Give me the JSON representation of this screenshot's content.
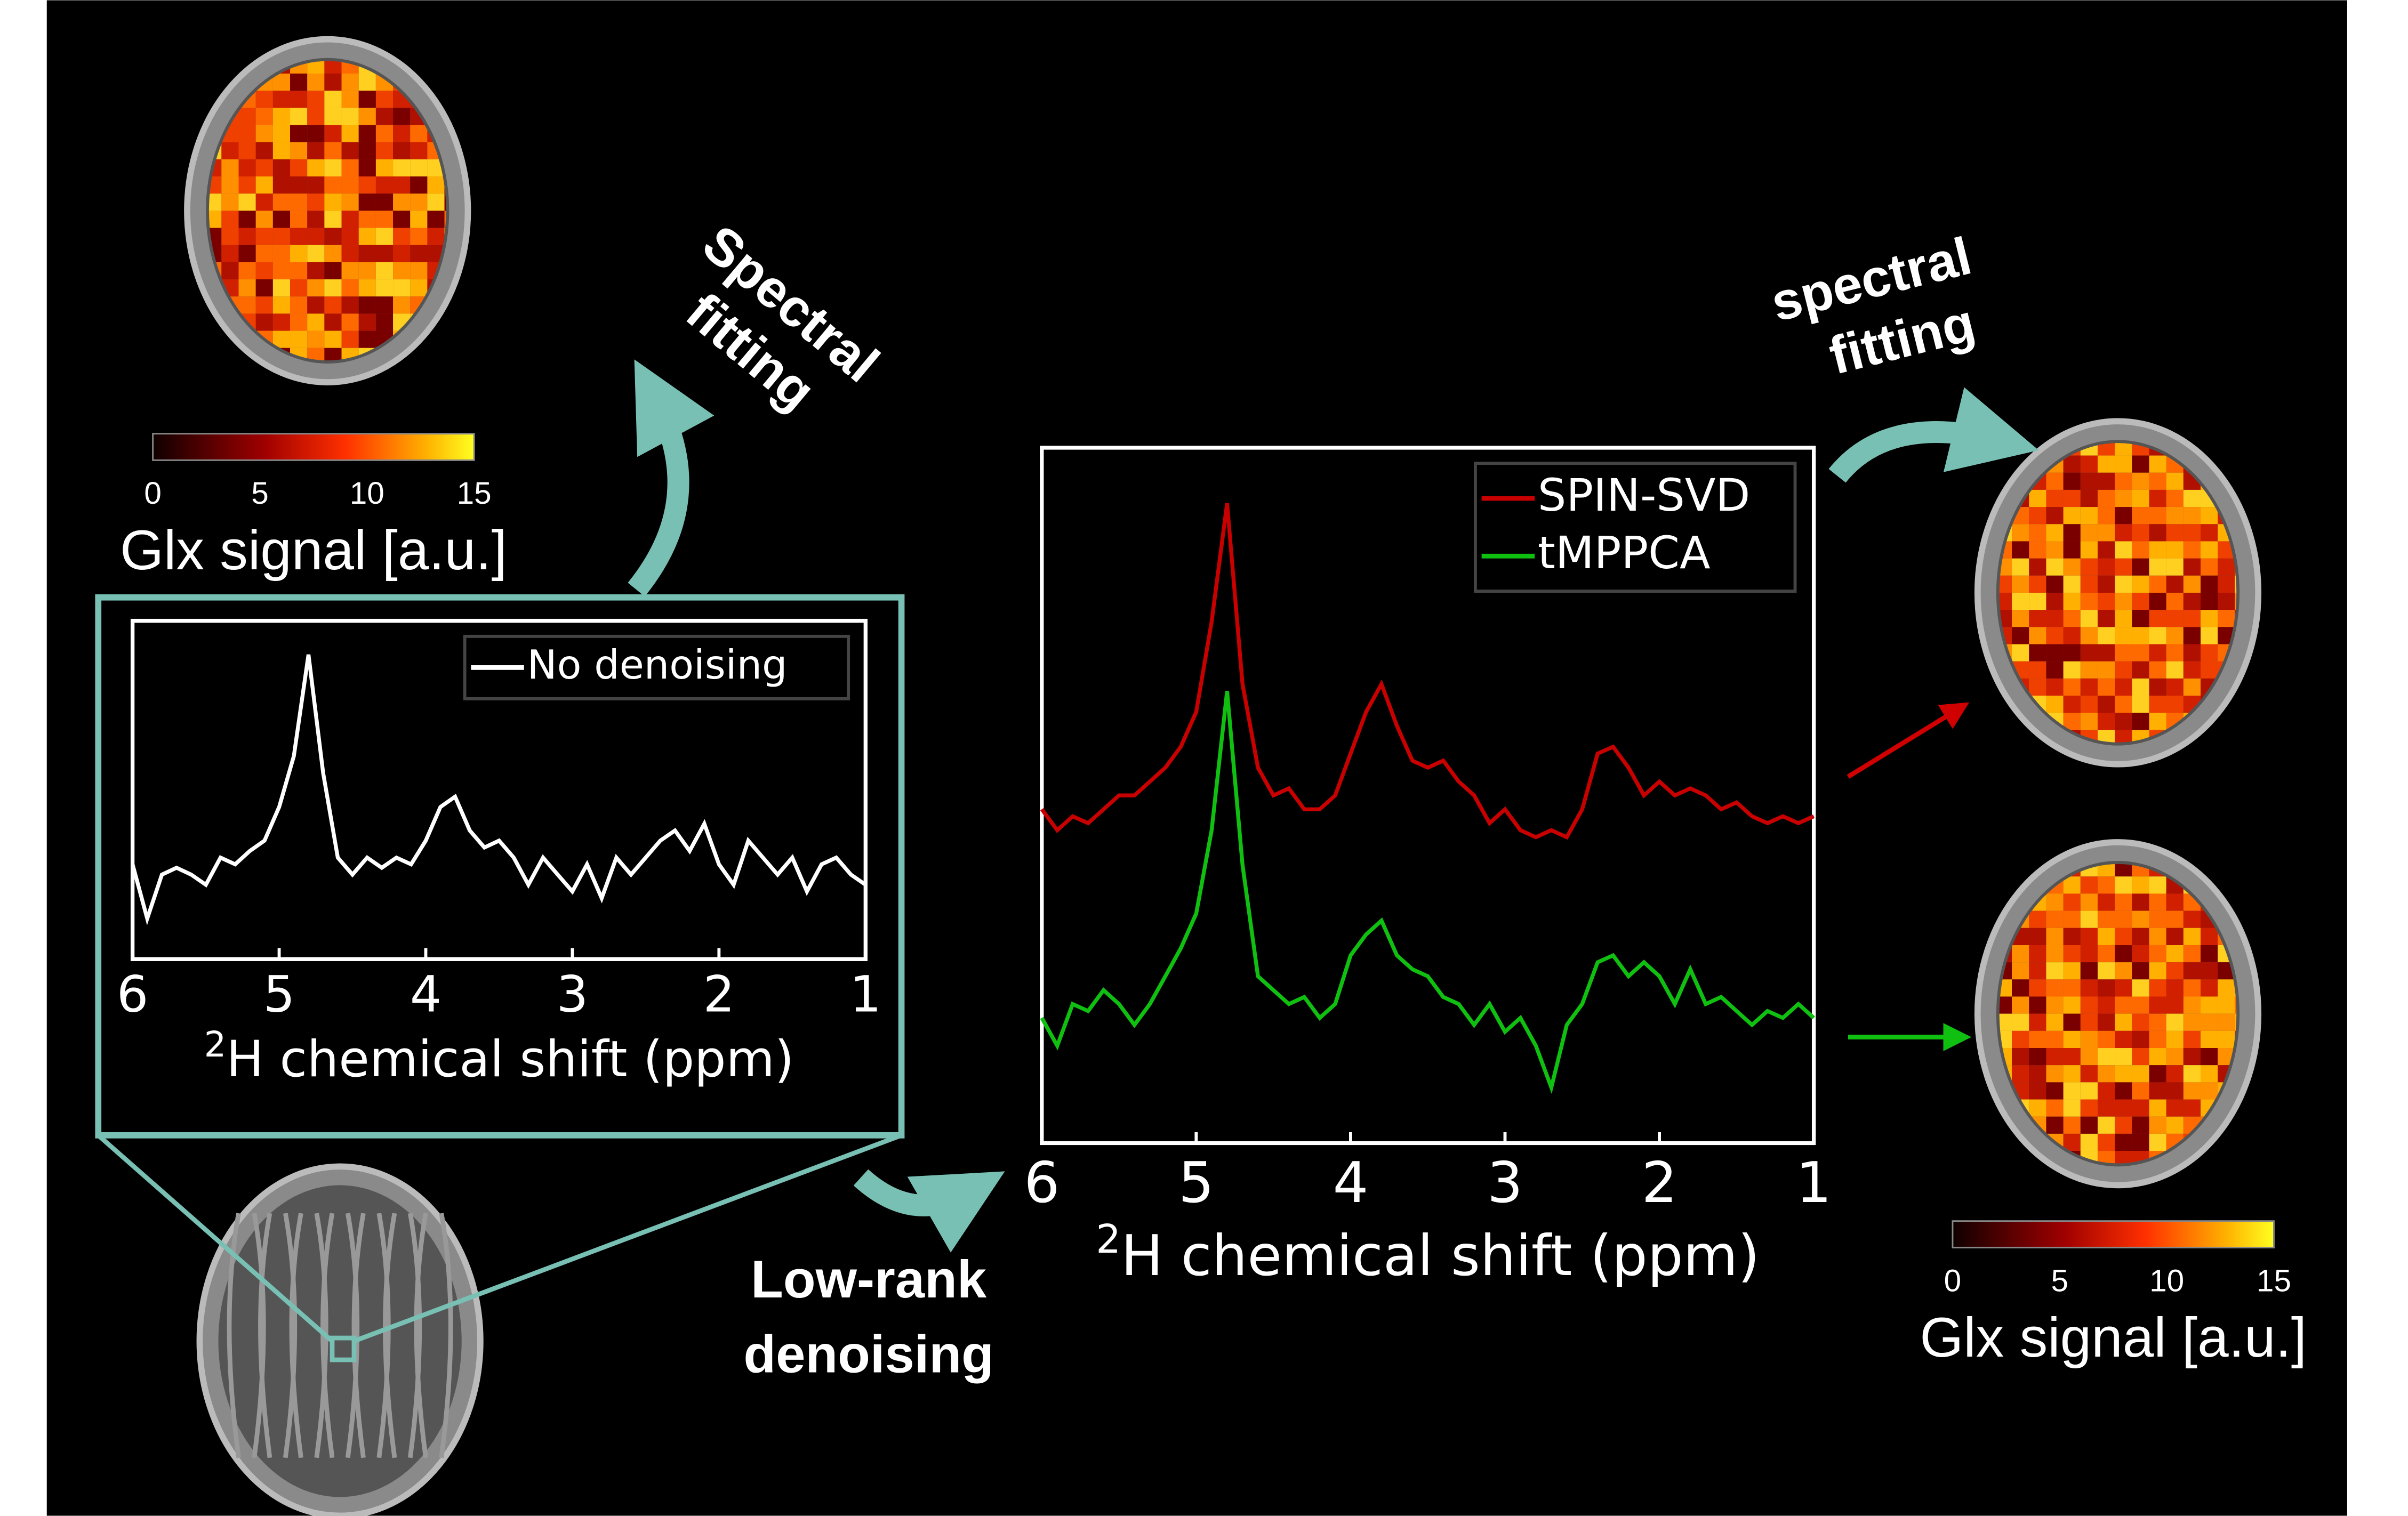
{
  "left_map": {
    "colorbar": {
      "ticks": [
        0,
        5,
        10,
        15
      ],
      "label": "Glx signal [a.u.]"
    },
    "arrow_label": [
      "Spectral",
      "fitting"
    ]
  },
  "noisy_spectrum": {
    "legend": "No denoising",
    "xlim": [
      6,
      1
    ],
    "xticks": [
      6,
      5,
      4,
      3,
      2,
      1
    ],
    "xlabel_sup": "2",
    "xlabel": "H chemical shift (ppm)",
    "x": [
      6,
      5.9,
      5.8,
      5.7,
      5.6,
      5.5,
      5.4,
      5.3,
      5.2,
      5.1,
      5,
      4.9,
      4.8,
      4.7,
      4.6,
      4.5,
      4.4,
      4.3,
      4.2,
      4.1,
      4,
      3.9,
      3.8,
      3.7,
      3.6,
      3.5,
      3.4,
      3.3,
      3.2,
      3.1,
      3,
      2.9,
      2.8,
      2.7,
      2.6,
      2.5,
      2.4,
      2.3,
      2.2,
      2.1,
      2,
      1.9,
      1.8,
      1.7,
      1.6,
      1.5,
      1.4,
      1.3,
      1.2,
      1.1,
      1
    ],
    "color": "#ffffff",
    "values": [
      0.28,
      0.12,
      0.25,
      0.27,
      0.25,
      0.22,
      0.3,
      0.28,
      0.32,
      0.35,
      0.45,
      0.6,
      0.9,
      0.55,
      0.3,
      0.25,
      0.3,
      0.27,
      0.3,
      0.28,
      0.35,
      0.45,
      0.48,
      0.38,
      0.33,
      0.35,
      0.3,
      0.22,
      0.3,
      0.25,
      0.2,
      0.28,
      0.18,
      0.3,
      0.25,
      0.3,
      0.35,
      0.38,
      0.32,
      0.4,
      0.28,
      0.22,
      0.35,
      0.3,
      0.25,
      0.3,
      0.2,
      0.28,
      0.3,
      0.25,
      0.22
    ]
  },
  "denoise_label": [
    "Low-rank",
    "denoising"
  ],
  "denoised_spectra": {
    "xlim": [
      6,
      1
    ],
    "xticks": [
      6,
      5,
      4,
      3,
      2,
      1
    ],
    "xlabel_sup": "2",
    "xlabel": "H chemical shift (ppm)",
    "x": [
      6,
      5.9,
      5.8,
      5.7,
      5.6,
      5.5,
      5.4,
      5.3,
      5.2,
      5.1,
      5,
      4.9,
      4.8,
      4.7,
      4.6,
      4.5,
      4.4,
      4.3,
      4.2,
      4.1,
      4,
      3.9,
      3.8,
      3.7,
      3.6,
      3.5,
      3.4,
      3.3,
      3.2,
      3.1,
      3,
      2.9,
      2.8,
      2.7,
      2.6,
      2.5,
      2.4,
      2.3,
      2.2,
      2.1,
      2,
      1.9,
      1.8,
      1.7,
      1.6,
      1.5,
      1.4,
      1.3,
      1.2,
      1.1,
      1
    ],
    "series": [
      {
        "name": "SPIN-SVD",
        "color": "#c80000",
        "values": [
          0.48,
          0.45,
          0.47,
          0.46,
          0.48,
          0.5,
          0.5,
          0.52,
          0.54,
          0.57,
          0.62,
          0.75,
          0.92,
          0.66,
          0.54,
          0.5,
          0.51,
          0.48,
          0.48,
          0.5,
          0.56,
          0.62,
          0.66,
          0.6,
          0.55,
          0.54,
          0.55,
          0.52,
          0.5,
          0.46,
          0.48,
          0.45,
          0.44,
          0.45,
          0.44,
          0.48,
          0.56,
          0.57,
          0.54,
          0.5,
          0.52,
          0.5,
          0.51,
          0.5,
          0.48,
          0.49,
          0.47,
          0.46,
          0.47,
          0.46,
          0.47
        ]
      },
      {
        "name": "tMPPCA",
        "color": "#10c010",
        "values": [
          0.18,
          0.14,
          0.2,
          0.19,
          0.22,
          0.2,
          0.17,
          0.2,
          0.24,
          0.28,
          0.33,
          0.45,
          0.65,
          0.4,
          0.24,
          0.22,
          0.2,
          0.21,
          0.18,
          0.2,
          0.27,
          0.3,
          0.32,
          0.27,
          0.25,
          0.24,
          0.21,
          0.2,
          0.17,
          0.2,
          0.16,
          0.18,
          0.14,
          0.08,
          0.17,
          0.2,
          0.26,
          0.27,
          0.24,
          0.26,
          0.24,
          0.2,
          0.25,
          0.2,
          0.21,
          0.19,
          0.17,
          0.19,
          0.18,
          0.2,
          0.18
        ]
      }
    ]
  },
  "right_label": [
    "spectral",
    "fitting"
  ],
  "right_map": {
    "colorbar": {
      "ticks": [
        0,
        5,
        10,
        15
      ],
      "label": "Glx signal [a.u.]"
    }
  }
}
